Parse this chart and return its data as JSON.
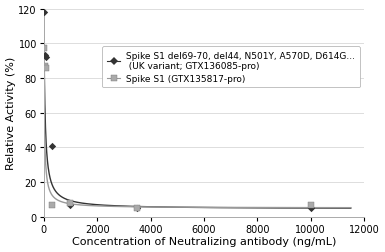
{
  "title": "",
  "xlabel": "Concentration of Neutralizing antibody (ng/mL)",
  "ylabel": "Relative Activity (%)",
  "xlim": [
    0,
    12000
  ],
  "ylim": [
    0,
    120
  ],
  "xticks": [
    0,
    2000,
    4000,
    6000,
    8000,
    10000,
    12000
  ],
  "yticks": [
    0,
    20,
    40,
    60,
    80,
    100,
    120
  ],
  "series1_label": " Spike S1 del69-70, del44, N501Y, A570D, D614G...\n  (UK variant; GTX136085-pro)",
  "series2_label": " Spike S1 (GTX135817-pro)",
  "series1_x": [
    10,
    50,
    100,
    300,
    1000,
    3500,
    10000
  ],
  "series1_y": [
    118,
    93,
    92,
    41,
    7,
    5,
    5
  ],
  "series2_x": [
    10,
    50,
    100,
    300,
    1000,
    3500,
    10000
  ],
  "series2_y": [
    97,
    87,
    86,
    7,
    8,
    5,
    7
  ],
  "curve1_color": "#333333",
  "curve2_color": "#999999",
  "marker1_color": "#333333",
  "marker2_color": "#aaaaaa",
  "bg_color": "#ffffff",
  "grid_color": "#d0d0d0",
  "legend_fontsize": 6.5,
  "axis_fontsize": 8,
  "tick_fontsize": 7
}
